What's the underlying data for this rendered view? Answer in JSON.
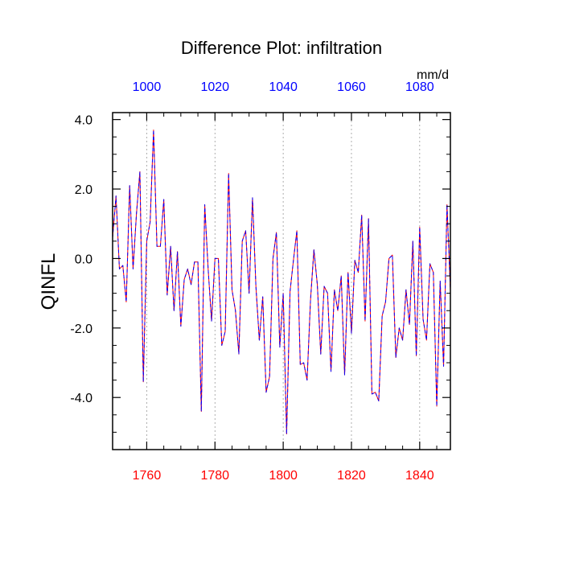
{
  "chart_data": {
    "type": "line",
    "title": "Difference Plot: infiltration",
    "units": "mm/d",
    "ylabel": "QINFL",
    "xlabel": "",
    "xlim": [
      1750,
      1849
    ],
    "ylim": [
      -5.5,
      4.2
    ],
    "top_axis": {
      "color": "#0000ff",
      "ticks": [
        1000,
        1020,
        1040,
        1060,
        1080
      ],
      "tick_labels": [
        "1000",
        "1020",
        "1040",
        "1060",
        "1080"
      ],
      "offset": -760
    },
    "bottom_axis": {
      "color": "#ff0000",
      "ticks": [
        1760,
        1780,
        1800,
        1820,
        1840
      ],
      "tick_labels": [
        "1760",
        "1780",
        "1800",
        "1820",
        "1840"
      ]
    },
    "y_ticks": [
      4.0,
      2.0,
      0.0,
      -2.0,
      -4.0
    ],
    "y_tick_labels": [
      "4.0",
      "2.0",
      "0.0",
      "-2.0",
      "-4.0"
    ],
    "grid": "vertical dashed",
    "series": [
      {
        "color": "#ff0000",
        "style": "dashed",
        "x": [
          1750,
          1751,
          1752,
          1753,
          1754,
          1755,
          1756,
          1757,
          1758,
          1759,
          1760,
          1761,
          1762,
          1763,
          1764,
          1765,
          1766,
          1767,
          1768,
          1769,
          1770,
          1771,
          1772,
          1773,
          1774,
          1775,
          1776,
          1777,
          1778,
          1779,
          1780,
          1781,
          1782,
          1783,
          1784,
          1785,
          1786,
          1787,
          1788,
          1789,
          1790,
          1791,
          1792,
          1793,
          1794,
          1795,
          1796,
          1797,
          1798,
          1799,
          1800,
          1801,
          1802,
          1803,
          1804,
          1805,
          1806,
          1807,
          1808,
          1809,
          1810,
          1811,
          1812,
          1813,
          1814,
          1815,
          1816,
          1817,
          1818,
          1819,
          1820,
          1821,
          1822,
          1823,
          1824,
          1825,
          1826,
          1827,
          1828,
          1829,
          1830,
          1831,
          1832,
          1833,
          1834,
          1835,
          1836,
          1837,
          1838,
          1839,
          1840,
          1841,
          1842,
          1843,
          1844,
          1845,
          1846,
          1847,
          1848,
          1849
        ],
        "y": [
          0.6,
          1.8,
          -0.3,
          -0.2,
          -1.25,
          2.1,
          -0.3,
          1.3,
          2.5,
          -3.55,
          0.5,
          1.05,
          3.7,
          0.35,
          0.35,
          1.7,
          -1.05,
          0.35,
          -1.5,
          0.2,
          -1.95,
          -0.6,
          -0.3,
          -0.75,
          -0.1,
          -0.1,
          -4.4,
          1.55,
          -0.3,
          -1.8,
          0.0,
          0.0,
          -2.5,
          -2.1,
          2.45,
          -0.9,
          -1.5,
          -2.75,
          0.5,
          0.8,
          -1.0,
          1.75,
          -0.8,
          -2.35,
          -1.1,
          -3.85,
          -3.4,
          0.0,
          0.75,
          -2.55,
          -1.0,
          -5.05,
          -0.95,
          -0.05,
          0.8,
          -3.05,
          -3.0,
          -3.5,
          -1.2,
          0.25,
          -0.75,
          -2.75,
          -0.8,
          -1.0,
          -3.25,
          -0.9,
          -1.5,
          -0.5,
          -3.35,
          -0.4,
          -2.15,
          -0.05,
          -0.4,
          1.25,
          -1.8,
          1.15,
          -3.9,
          -3.85,
          -4.1,
          -1.65,
          -1.25,
          0.0,
          0.1,
          -2.85,
          -2.0,
          -2.35,
          -0.9,
          -1.9,
          0.5,
          -2.8,
          0.9,
          -1.75,
          -2.35,
          -0.15,
          -0.4,
          -4.25,
          -0.65,
          -3.1,
          1.55,
          -0.9
        ]
      },
      {
        "color": "#0000ff",
        "style": "dashed",
        "x": [
          1750,
          1751,
          1752,
          1753,
          1754,
          1755,
          1756,
          1757,
          1758,
          1759,
          1760,
          1761,
          1762,
          1763,
          1764,
          1765,
          1766,
          1767,
          1768,
          1769,
          1770,
          1771,
          1772,
          1773,
          1774,
          1775,
          1776,
          1777,
          1778,
          1779,
          1780,
          1781,
          1782,
          1783,
          1784,
          1785,
          1786,
          1787,
          1788,
          1789,
          1790,
          1791,
          1792,
          1793,
          1794,
          1795,
          1796,
          1797,
          1798,
          1799,
          1800,
          1801,
          1802,
          1803,
          1804,
          1805,
          1806,
          1807,
          1808,
          1809,
          1810,
          1811,
          1812,
          1813,
          1814,
          1815,
          1816,
          1817,
          1818,
          1819,
          1820,
          1821,
          1822,
          1823,
          1824,
          1825,
          1826,
          1827,
          1828,
          1829,
          1830,
          1831,
          1832,
          1833,
          1834,
          1835,
          1836,
          1837,
          1838,
          1839,
          1840,
          1841,
          1842,
          1843,
          1844,
          1845,
          1846,
          1847,
          1848,
          1849
        ],
        "y": [
          0.6,
          1.8,
          -0.3,
          -0.2,
          -1.25,
          2.1,
          -0.3,
          1.3,
          2.5,
          -3.55,
          0.5,
          1.05,
          3.7,
          0.35,
          0.35,
          1.7,
          -1.05,
          0.35,
          -1.5,
          0.2,
          -1.95,
          -0.6,
          -0.3,
          -0.75,
          -0.1,
          -0.1,
          -4.4,
          1.55,
          -0.3,
          -1.8,
          0.0,
          0.0,
          -2.5,
          -2.1,
          2.45,
          -0.9,
          -1.5,
          -2.75,
          0.5,
          0.8,
          -1.0,
          1.75,
          -0.8,
          -2.35,
          -1.1,
          -3.85,
          -3.4,
          0.0,
          0.75,
          -2.55,
          -1.0,
          -5.05,
          -0.95,
          -0.05,
          0.8,
          -3.05,
          -3.0,
          -3.5,
          -1.2,
          0.25,
          -0.75,
          -2.75,
          -0.8,
          -1.0,
          -3.25,
          -0.9,
          -1.5,
          -0.5,
          -3.35,
          -0.4,
          -2.15,
          -0.05,
          -0.4,
          1.25,
          -1.8,
          1.15,
          -3.9,
          -3.85,
          -4.1,
          -1.65,
          -1.25,
          0.0,
          0.1,
          -2.85,
          -2.0,
          -2.35,
          -0.9,
          -1.9,
          0.5,
          -2.8,
          0.9,
          -1.75,
          -2.35,
          -0.15,
          -0.4,
          -4.25,
          -0.65,
          -3.1,
          1.55,
          -0.9
        ]
      }
    ]
  }
}
